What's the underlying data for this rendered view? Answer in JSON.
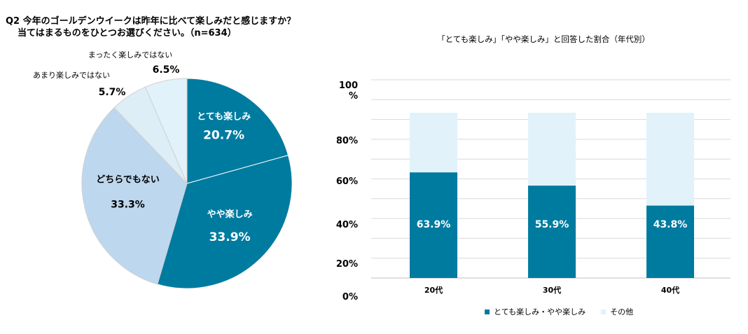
{
  "question": {
    "line1": "Q2 今年のゴールデンウイークは昨年に比べて楽しみだと感じますか？",
    "line2": "当てはまるものをひとつお選びください。（n=634）"
  },
  "colors": {
    "dark": "#007BA0",
    "light": "#BDD7EE",
    "pale": "#DEEEF7",
    "paler": "#E2F2FA",
    "grid": "#D9D9D9"
  },
  "chart_data": [
    {
      "type": "pie",
      "title": "Q2 今年のゴールデンウイークは昨年に比べて楽しみだと感じますか？ 当てはまるものをひとつお選びください。（n=634）",
      "slices": [
        {
          "label": "とても楽しみ",
          "value": 20.7,
          "display": "20.7%"
        },
        {
          "label": "やや楽しみ",
          "value": 33.9,
          "display": "33.9%"
        },
        {
          "label": "どちらでもない",
          "value": 33.3,
          "display": "33.3%"
        },
        {
          "label": "あまり楽しみではない",
          "value": 5.7,
          "display": "5.7%"
        },
        {
          "label": "まったく楽しみではない",
          "value": 6.5,
          "display": "6.5%"
        }
      ]
    },
    {
      "type": "bar",
      "stacked": true,
      "title": "「とても楽しみ」「やや楽しみ」と回答した割合（年代別）",
      "categories": [
        "20代",
        "30代",
        "40代"
      ],
      "series": [
        {
          "name": "とても楽しみ・やや楽しみ",
          "values": [
            63.9,
            55.9,
            43.8
          ],
          "labels": [
            "63.9%",
            "55.9%",
            "43.8%"
          ]
        },
        {
          "name": "その他",
          "values": [
            36.1,
            44.1,
            56.2
          ]
        }
      ],
      "ylim": [
        0,
        100
      ],
      "yticks": [
        {
          "value": 0,
          "label": "0%"
        },
        {
          "value": 20,
          "label": "20%"
        },
        {
          "value": 40,
          "label": "40%"
        },
        {
          "value": 60,
          "label": "60%"
        },
        {
          "value": 80,
          "label": "80%"
        },
        {
          "value": 100,
          "label": "100\n%"
        }
      ],
      "grid": true,
      "legend": "bottom"
    }
  ]
}
